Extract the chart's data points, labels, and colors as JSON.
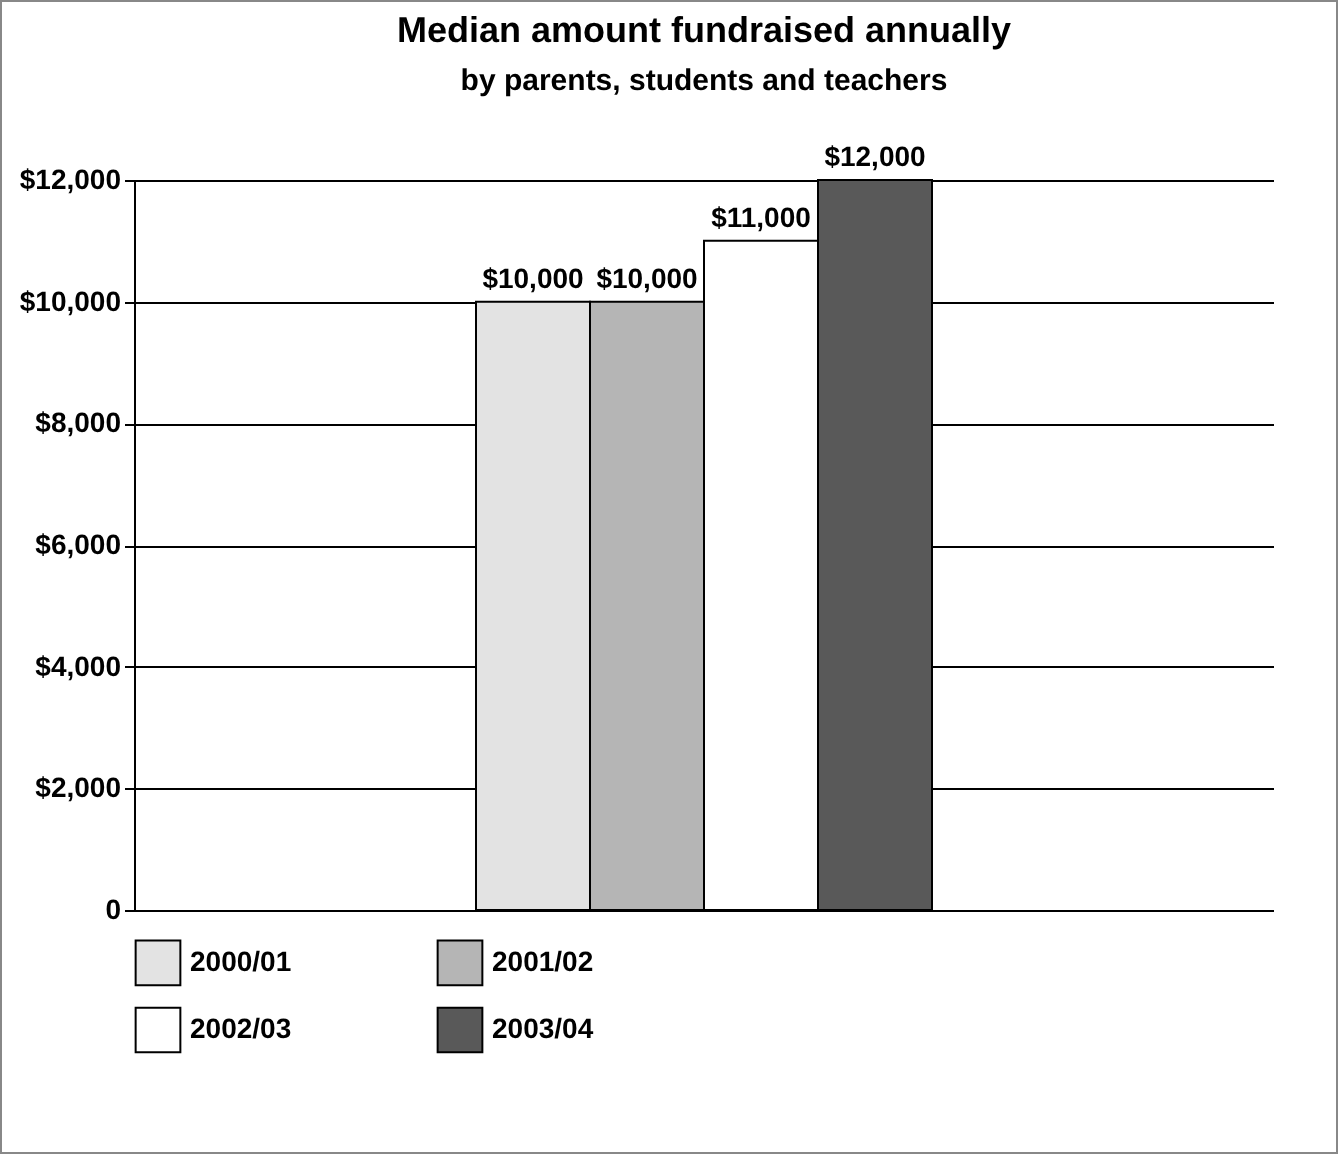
{
  "chart_data": {
    "type": "bar",
    "title": "Median amount fundraised annually",
    "subtitle": "by parents, students and teachers",
    "categories": [
      null
    ],
    "series": [
      {
        "name": "2000/01",
        "color": "#e3e3e3",
        "values": [
          10000
        ],
        "value_labels": [
          "$10,000"
        ]
      },
      {
        "name": "2001/02",
        "color": "#b5b5b5",
        "values": [
          10000
        ],
        "value_labels": [
          "$10,000"
        ]
      },
      {
        "name": "2002/03",
        "color": "#ffffff",
        "values": [
          11000
        ],
        "value_labels": [
          "$11,000"
        ]
      },
      {
        "name": "2003/04",
        "color": "#595959",
        "values": [
          12000
        ],
        "value_labels": [
          "$12,000"
        ]
      }
    ],
    "ylim": [
      0,
      12000
    ],
    "yticks": [
      0,
      {
        "value": 2000,
        "label": "$2,000"
      },
      {
        "value": 4000,
        "label": "$4,000"
      },
      {
        "value": 6000,
        "label": "$6,000"
      },
      {
        "value": 8000,
        "label": "$8,000"
      },
      {
        "value": 10000,
        "label": "$10,000"
      },
      {
        "value": 12000,
        "label": "$12,000"
      }
    ],
    "grid": "y",
    "legend": "bottom",
    "tick_labels": "y"
  }
}
